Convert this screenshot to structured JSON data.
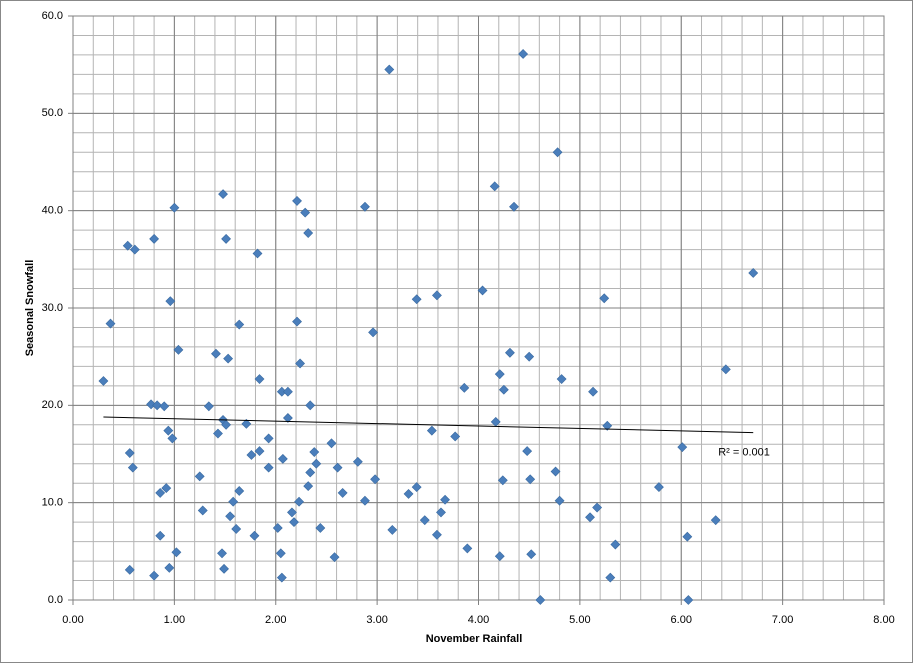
{
  "chart_data": {
    "type": "scatter",
    "x_label": "November Rainfall",
    "y_label": "Seasonal Snowfall",
    "color": "#4a7ebb",
    "x": [
      0.3,
      0.37,
      0.54,
      0.61,
      0.56,
      0.59,
      0.56,
      0.8,
      0.77,
      0.83,
      0.9,
      0.96,
      1.0,
      1.04,
      0.94,
      0.98,
      0.86,
      0.92,
      0.86,
      0.8,
      0.95,
      1.02,
      1.25,
      1.28,
      1.34,
      1.41,
      1.43,
      1.48,
      1.51,
      1.48,
      1.51,
      1.53,
      1.55,
      1.58,
      1.61,
      1.64,
      1.64,
      1.47,
      1.49,
      1.71,
      1.76,
      1.79,
      1.82,
      1.84,
      1.84,
      1.93,
      1.93,
      2.02,
      2.05,
      2.06,
      2.06,
      2.12,
      2.12,
      2.07,
      2.16,
      2.18,
      2.23,
      2.21,
      2.29,
      2.32,
      2.21,
      2.24,
      2.34,
      2.34,
      2.32,
      2.38,
      2.4,
      2.44,
      2.55,
      2.61,
      2.66,
      2.58,
      2.81,
      2.88,
      2.88,
      2.96,
      2.98,
      3.12,
      3.15,
      3.31,
      3.39,
      3.39,
      3.47,
      3.54,
      3.59,
      3.59,
      3.63,
      3.67,
      3.77,
      3.86,
      3.89,
      4.04,
      4.16,
      4.17,
      4.21,
      4.25,
      4.24,
      4.21,
      4.31,
      4.35,
      4.44,
      4.5,
      4.48,
      4.51,
      4.52,
      4.61,
      4.78,
      4.82,
      4.76,
      4.8,
      5.1,
      5.17,
      5.13,
      5.24,
      5.27,
      5.35,
      5.3,
      5.78,
      6.01,
      6.06,
      6.07,
      6.34,
      6.44,
      6.71
    ],
    "values": [
      22.5,
      28.4,
      36.4,
      36.0,
      15.1,
      13.6,
      3.1,
      37.1,
      20.1,
      20.0,
      19.9,
      30.7,
      40.3,
      25.7,
      17.4,
      16.6,
      11.0,
      11.5,
      6.6,
      2.5,
      3.3,
      4.9,
      12.7,
      9.2,
      19.9,
      25.3,
      17.1,
      41.7,
      37.1,
      18.5,
      18.0,
      24.8,
      8.6,
      10.1,
      7.3,
      11.2,
      28.3,
      4.8,
      3.2,
      18.1,
      14.9,
      6.6,
      35.6,
      22.7,
      15.3,
      16.6,
      13.6,
      7.4,
      4.8,
      2.3,
      21.4,
      21.4,
      18.7,
      14.5,
      9.0,
      8.0,
      10.1,
      41.0,
      39.8,
      37.7,
      28.6,
      24.3,
      20.0,
      13.1,
      11.7,
      15.2,
      14.0,
      7.4,
      16.1,
      13.6,
      11.0,
      4.4,
      14.2,
      40.4,
      10.2,
      27.5,
      12.4,
      54.5,
      7.2,
      10.9,
      30.9,
      11.6,
      8.2,
      17.4,
      31.3,
      6.7,
      9.0,
      10.3,
      16.8,
      21.8,
      5.3,
      31.8,
      42.5,
      18.3,
      23.2,
      21.6,
      12.3,
      4.5,
      25.4,
      40.4,
      56.1,
      25.0,
      15.3,
      12.4,
      4.7,
      0.0,
      46.0,
      22.7,
      13.2,
      10.2,
      8.5,
      9.5,
      21.4,
      31.0,
      17.9,
      5.7,
      2.3,
      11.6,
      15.7,
      6.5,
      0.0,
      8.2,
      23.7,
      33.6
    ],
    "trendline": {
      "x": [
        0.3,
        6.71
      ],
      "y": [
        18.8,
        17.2
      ],
      "color": "#000000",
      "label": "R² = 0.001"
    },
    "xlim": [
      0,
      8
    ],
    "ylim": [
      0,
      60
    ],
    "xticks": [
      {
        "value": 0,
        "label": "0.00"
      },
      {
        "value": 1,
        "label": "1.00"
      },
      {
        "value": 2,
        "label": "2.00"
      },
      {
        "value": 3,
        "label": "3.00"
      },
      {
        "value": 4,
        "label": "4.00"
      },
      {
        "value": 5,
        "label": "5.00"
      },
      {
        "value": 6,
        "label": "6.00"
      },
      {
        "value": 7,
        "label": "7.00"
      },
      {
        "value": 8,
        "label": "8.00"
      }
    ],
    "yticks": [
      {
        "value": 0,
        "label": "0.0"
      },
      {
        "value": 10,
        "label": "10.0"
      },
      {
        "value": 20,
        "label": "20.0"
      },
      {
        "value": 30,
        "label": "30.0"
      },
      {
        "value": 40,
        "label": "40.0"
      },
      {
        "value": 50,
        "label": "50.0"
      },
      {
        "value": 60,
        "label": "60.0"
      }
    ],
    "grid": true,
    "minor_grid": {
      "x": 0.2,
      "y": 2
    }
  }
}
